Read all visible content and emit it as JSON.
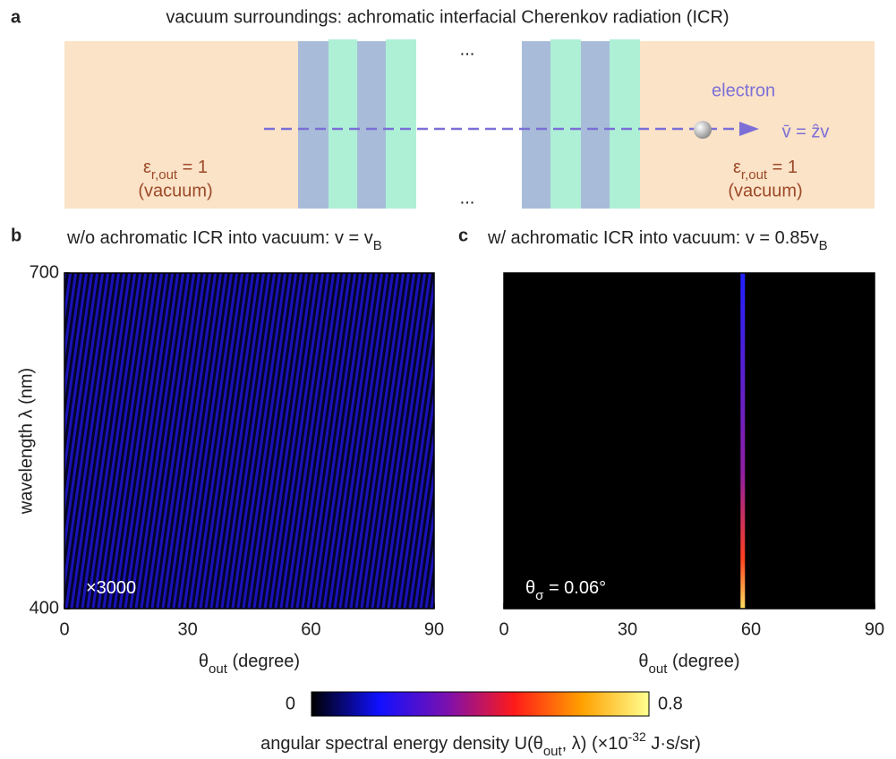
{
  "panel_a": {
    "label": "a",
    "title": "vacuum surroundings: achromatic interfacial Cherenkov radiation (ICR)",
    "ellipsis_top": "...",
    "ellipsis_bottom": "...",
    "electron": "electron",
    "velocity": "v̄ = ẑv",
    "left_permittivity": [
      "ε",
      {
        "sub": "r,out"
      },
      " = 1"
    ],
    "left_medium": "(vacuum)",
    "right_permittivity": [
      "ε",
      {
        "sub": "r,out"
      },
      " = 1"
    ],
    "right_medium": "(vacuum)"
  },
  "chart_data": [
    {
      "type": "heatmap",
      "panel": "b",
      "title": [
        "w/o achromatic ICR into vacuum: v = v",
        {
          "sub": "B"
        }
      ],
      "xlabel": [
        "θ",
        {
          "sub": "out"
        },
        " (degree)"
      ],
      "ylabel": "wavelength λ (nm)",
      "xlim": [
        0,
        90
      ],
      "xticks": [
        0,
        30,
        60,
        90
      ],
      "ylim": [
        400,
        700
      ],
      "yticks": [
        400,
        700
      ],
      "annotation": [
        "×3000"
      ]
    },
    {
      "type": "heatmap",
      "panel": "c",
      "title": [
        "w/ achromatic ICR into vacuum: v = 0.85v",
        {
          "sub": "B"
        }
      ],
      "xlabel": [
        "θ",
        {
          "sub": "out"
        },
        " (degree)"
      ],
      "xlim": [
        0,
        90
      ],
      "xticks": [
        0,
        30,
        60,
        90
      ],
      "ylim": [
        400,
        700
      ],
      "annotation": [
        "θ",
        {
          "sub": "σ"
        },
        " = 0.06°"
      ],
      "peak_theta": 58
    }
  ],
  "colorbar": {
    "clim": [
      0,
      0.8
    ],
    "ticks": [
      0,
      0.8
    ],
    "colors": [
      "#000000",
      "#1010ff",
      "#7a10b0",
      "#ff1a1a",
      "#ffa000",
      "#ffff90"
    ],
    "label": [
      "angular spectral energy density U(θ",
      {
        "sub": "out"
      },
      ", λ) (×10",
      {
        "sup": "-32"
      },
      " J·s/sr)"
    ]
  }
}
